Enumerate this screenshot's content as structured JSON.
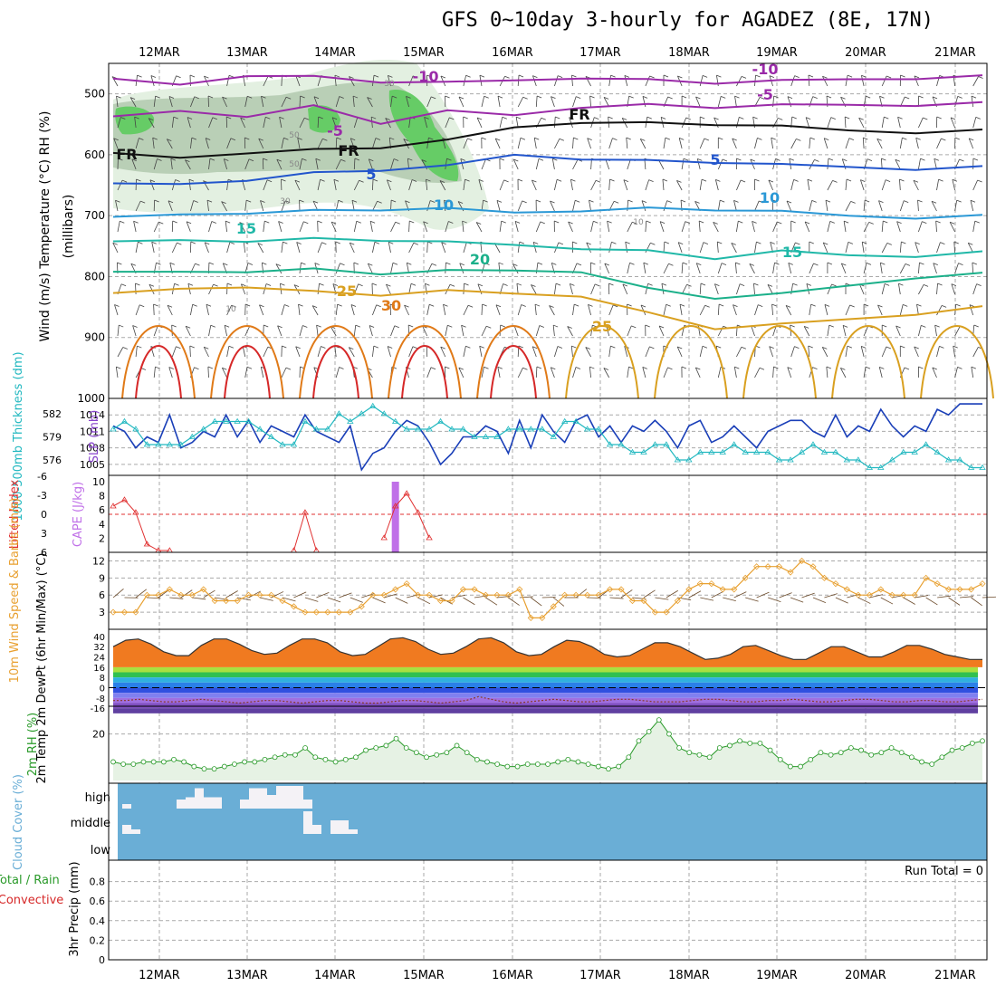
{
  "title": "GFS 0~10day 3-hourly for AGADEZ (8E, 17N)",
  "dates": [
    "12MAR",
    "13MAR",
    "14MAR",
    "15MAR",
    "16MAR",
    "17MAR",
    "18MAR",
    "19MAR",
    "20MAR",
    "21MAR"
  ],
  "colors": {
    "grid": "#aaaaaa",
    "rh_light": "#e3f0e1",
    "rh_mid": "#b9cfb6",
    "rh_green": "#66cc66",
    "freezing": "#111111",
    "t_neg": "#9a2aa8",
    "t_5": "#2255cc",
    "t_10": "#2a98d6",
    "t_15": "#20b8a8",
    "t_20": "#1bb08a",
    "t_25": "#d9a020",
    "t_30": "#e07a18",
    "t_hot": "#d62828",
    "slp": "#1a3fb8",
    "thickness": "#22b8c0",
    "lifted": "#e03030",
    "cape": "#c070e8",
    "wind10": "#e8a030",
    "barb": "#333333",
    "rh2m": "#2a9a2a",
    "cloud": "#6aaed6",
    "precip_label": "#d62828"
  },
  "chart_data": [
    {
      "panel": "upper-air",
      "type": "heatmap",
      "ylabel": "Wind (m/s)  Temperature (°C)  RH (%)",
      "ylabel2": "(millibars)",
      "y_ticks": [
        500,
        600,
        700,
        800,
        900,
        1000
      ],
      "ylim": [
        450,
        1000
      ],
      "contour_labels": [
        "-10",
        "-10",
        "-5",
        "-5",
        "FR",
        "FR",
        "FR",
        "5",
        "5",
        "10",
        "10",
        "15",
        "15",
        "20",
        "25",
        "30",
        "25",
        "10",
        "10",
        "30",
        "50",
        "50",
        "30"
      ],
      "series": [
        {
          "name": "-10",
          "pressure": [
            478,
            485,
            468,
            472,
            480,
            483,
            478,
            472,
            477,
            482,
            480,
            476,
            473,
            471
          ]
        },
        {
          "name": "-5",
          "pressure": [
            540,
            528,
            535,
            520,
            548,
            530,
            535,
            520,
            518,
            522,
            520,
            518,
            517,
            515
          ]
        },
        {
          "name": "FR",
          "pressure": [
            600,
            605,
            595,
            592,
            588,
            578,
            555,
            545,
            548,
            550,
            555,
            560,
            562,
            560
          ]
        },
        {
          "name": "5",
          "pressure": [
            650,
            648,
            640,
            630,
            625,
            620,
            600,
            605,
            610,
            612,
            618,
            620,
            622,
            620
          ]
        },
        {
          "name": "10",
          "pressure": [
            705,
            698,
            694,
            692,
            690,
            690,
            695,
            690,
            688,
            690,
            695,
            700,
            702,
            700
          ]
        },
        {
          "name": "15",
          "pressure": [
            745,
            740,
            740,
            738,
            740,
            745,
            748,
            752,
            758,
            770,
            760,
            765,
            765,
            760
          ]
        },
        {
          "name": "20",
          "pressure": [
            795,
            792,
            790,
            788,
            795,
            792,
            790,
            790,
            820,
            835,
            830,
            815,
            800,
            795
          ]
        },
        {
          "name": "25",
          "pressure": [
            830,
            820,
            815,
            825,
            830,
            825,
            828,
            830,
            860,
            885,
            880,
            870,
            860,
            850
          ]
        }
      ]
    },
    {
      "panel": "thickness-slp",
      "type": "line",
      "ylabel": "1000-500mb Thickness (dm)",
      "ylabel2": "SLP (mb)",
      "y_ticks_left": [
        576,
        579,
        582
      ],
      "y_ticks_right": [
        1005,
        1008,
        1011,
        1014
      ],
      "series": [
        {
          "name": "SLP",
          "values": [
            1012,
            1011,
            1008,
            1010,
            1009,
            1014,
            1008,
            1009,
            1011,
            1010,
            1014,
            1010,
            1013,
            1009,
            1012,
            1011,
            1010,
            1014,
            1011,
            1010,
            1009,
            1012,
            1004,
            1007,
            1008,
            1011,
            1013,
            1012,
            1009,
            1005,
            1007,
            1010,
            1010,
            1012,
            1011,
            1007,
            1013,
            1008,
            1014,
            1011,
            1009,
            1013,
            1014,
            1010,
            1012,
            1009,
            1012,
            1011,
            1013,
            1011,
            1008,
            1012,
            1013,
            1009,
            1010,
            1012,
            1010,
            1008,
            1011,
            1012,
            1013,
            1013,
            1011,
            1010,
            1014,
            1010,
            1012,
            1011,
            1015,
            1012,
            1010,
            1012,
            1011,
            1015,
            1014,
            1016,
            1016,
            1016
          ]
        },
        {
          "name": "Thickness",
          "values": [
            580,
            581,
            580,
            578,
            578,
            578,
            578,
            579,
            580,
            581,
            581,
            581,
            581,
            580,
            579,
            578,
            578,
            581,
            580,
            580,
            582,
            581,
            582,
            583,
            582,
            581,
            580,
            580,
            580,
            581,
            580,
            580,
            579,
            579,
            579,
            580,
            580,
            580,
            580,
            579,
            581,
            581,
            580,
            580,
            578,
            578,
            577,
            577,
            578,
            578,
            576,
            576,
            577,
            577,
            577,
            578,
            577,
            577,
            577,
            576,
            576,
            577,
            578,
            577,
            577,
            576,
            576,
            575,
            575,
            576,
            577,
            577,
            578,
            577,
            576,
            576,
            575,
            575
          ]
        }
      ]
    },
    {
      "panel": "lifted-cape",
      "type": "line",
      "ylabel": "Lifted Index",
      "ylabel2": "CAPE (J/kg)",
      "y_ticks_left": [
        -6,
        -3,
        0,
        3,
        6
      ],
      "y_ticks_right": [
        2,
        4,
        6,
        8,
        10
      ],
      "series": [
        {
          "name": "Lifted Index",
          "x": [
            0,
            1,
            2,
            3,
            4,
            5
          ],
          "values": [
            2,
            1,
            3,
            8,
            9,
            9
          ]
        },
        {
          "name": "LI spike 1",
          "x": [
            16,
            17,
            18
          ],
          "values": [
            9,
            3,
            9
          ]
        },
        {
          "name": "LI spike 2",
          "x": [
            24,
            25,
            26,
            27,
            28
          ],
          "values": [
            7,
            2,
            0,
            3,
            7
          ]
        }
      ],
      "cape_bar": {
        "x": 25,
        "value": 10
      }
    },
    {
      "panel": "wind-10m",
      "type": "line",
      "ylabel": "10m Wind Speed & Barbs (m/s)",
      "y_ticks": [
        3,
        6,
        9,
        12
      ],
      "series": [
        {
          "name": "Wind Speed",
          "values": [
            3,
            3,
            3,
            6,
            6,
            7,
            6,
            6,
            7,
            5,
            5,
            5,
            6,
            6,
            6,
            5,
            4,
            3,
            3,
            3,
            3,
            3,
            4,
            6,
            6,
            7,
            8,
            6,
            6,
            5,
            5,
            7,
            7,
            6,
            6,
            6,
            7,
            2,
            2,
            4,
            6,
            6,
            6,
            6,
            7,
            7,
            5,
            5,
            3,
            3,
            5,
            7,
            8,
            8,
            7,
            7,
            9,
            11,
            11,
            11,
            10,
            12,
            11,
            9,
            8,
            7,
            6,
            6,
            7,
            6,
            6,
            6,
            9,
            8,
            7,
            7,
            7,
            8
          ]
        }
      ]
    },
    {
      "panel": "temp-2m",
      "type": "area",
      "ylabel": "2m Temp 2m DewPt (6hr Min/Max) (°C)",
      "y_ticks": [
        40,
        32,
        24,
        16,
        8,
        0,
        -8,
        -16
      ],
      "series": [
        {
          "name": "Temp",
          "values": [
            32,
            37,
            38,
            34,
            28,
            25,
            25,
            33,
            38,
            38,
            34,
            29,
            26,
            27,
            33,
            38,
            38,
            35,
            28,
            25,
            26,
            32,
            38,
            39,
            36,
            30,
            26,
            27,
            32,
            38,
            39,
            35,
            28,
            25,
            26,
            32,
            37,
            36,
            32,
            26,
            24,
            25,
            30,
            35,
            35,
            32,
            27,
            22,
            23,
            26,
            32,
            33,
            29,
            25,
            22,
            22,
            27,
            32,
            32,
            28,
            24,
            24,
            28,
            33,
            33,
            30,
            26,
            24,
            22,
            22
          ]
        },
        {
          "name": "DewPt",
          "values": [
            -10,
            -10,
            -9,
            -10,
            -11,
            -11,
            -10,
            -9,
            -10,
            -11,
            -12,
            -11,
            -10,
            -10,
            -11,
            -12,
            -11,
            -10,
            -10,
            -11,
            -12,
            -12,
            -11,
            -10,
            -10,
            -11,
            -12,
            -11,
            -10,
            -7,
            -9,
            -11,
            -12,
            -11,
            -10,
            -9,
            -10,
            -11,
            -11,
            -10,
            -9,
            -9,
            -10,
            -11,
            -11,
            -11,
            -10,
            -9,
            -9,
            -10,
            -11,
            -11,
            -10,
            -10,
            -9,
            -10,
            -11,
            -11,
            -10,
            -9,
            -9,
            -10,
            -11,
            -11,
            -10,
            -10,
            -11,
            -11,
            -10,
            -9
          ]
        }
      ]
    },
    {
      "panel": "rh-2m",
      "type": "area",
      "ylabel": "2m RH (%)",
      "y_ticks": [
        20
      ],
      "series": [
        {
          "name": "RH",
          "values": [
            8,
            7,
            7,
            8,
            8,
            8,
            9,
            8,
            6,
            5,
            5,
            6,
            7,
            8,
            8,
            9,
            10,
            11,
            11,
            14,
            10,
            9,
            8,
            9,
            10,
            13,
            14,
            15,
            18,
            14,
            12,
            10,
            11,
            12,
            15,
            12,
            9,
            8,
            7,
            6,
            6,
            7,
            7,
            7,
            8,
            9,
            8,
            7,
            6,
            5,
            6,
            10,
            17,
            21,
            26,
            20,
            14,
            12,
            11,
            10,
            14,
            15,
            17,
            16,
            16,
            13,
            9,
            6,
            6,
            9,
            12,
            11,
            12,
            14,
            13,
            11,
            12,
            14,
            12,
            10,
            8,
            7,
            10,
            13,
            14,
            16,
            17
          ]
        }
      ]
    },
    {
      "panel": "cloud-cover",
      "type": "bar",
      "ylabel": "Cloud Cover (%)",
      "levels": [
        "high",
        "middle",
        "low"
      ],
      "series": [
        {
          "name": "high",
          "x": [
            0,
            1,
            2,
            3,
            4,
            5,
            6,
            7,
            8,
            9,
            10,
            11,
            12,
            13,
            14,
            15,
            16,
            17,
            18,
            19,
            20,
            21
          ],
          "values": [
            20,
            0,
            0,
            0,
            0,
            0,
            40,
            50,
            90,
            50,
            50,
            0,
            0,
            40,
            90,
            90,
            60,
            100,
            100,
            100,
            40,
            0
          ]
        },
        {
          "name": "middle",
          "x": [
            0,
            1,
            2,
            20,
            21,
            22,
            23,
            24,
            25
          ],
          "values": [
            40,
            20,
            0,
            100,
            40,
            0,
            60,
            60,
            20
          ]
        }
      ]
    },
    {
      "panel": "precip",
      "type": "bar",
      "ylabel": "Total / Rain Convective",
      "ylabel2": "3hr Precip (mm)",
      "y_ticks": [
        0,
        0.2,
        0.4,
        0.6,
        0.8
      ],
      "annotation": "Run Total = 0",
      "values": []
    }
  ]
}
